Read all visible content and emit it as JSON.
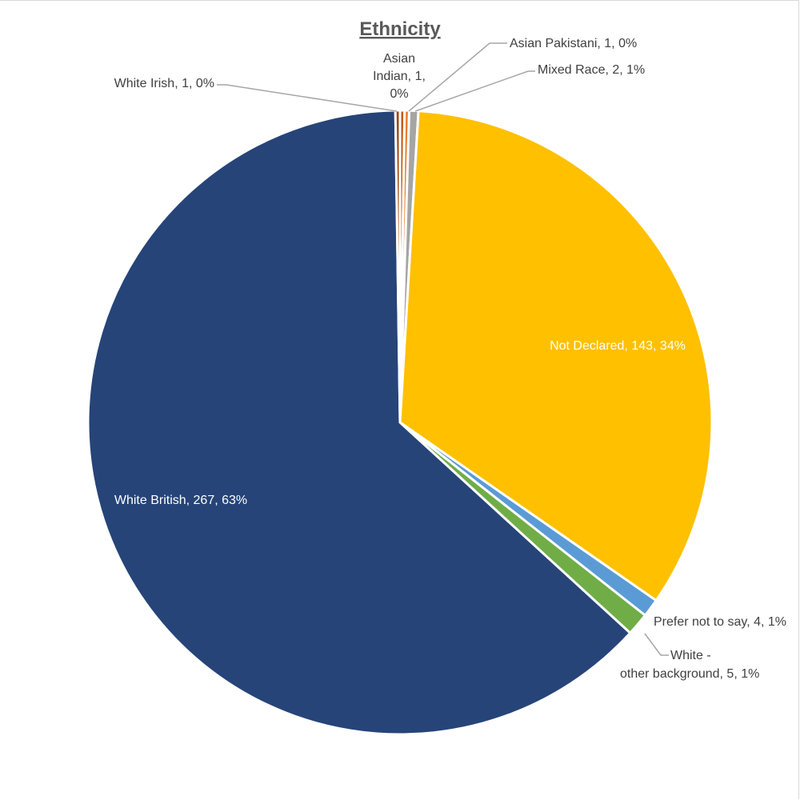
{
  "chart_data": {
    "type": "pie",
    "title": "Ethnicity",
    "slices": [
      {
        "name": "Asian Indian",
        "value": 1,
        "percent": "0%",
        "color": "#c55a11",
        "label_lines": [
          "Asian",
          "Indian, 1,",
          "0%"
        ]
      },
      {
        "name": "Asian Pakistani",
        "value": 1,
        "percent": "0%",
        "color": "#ed7d31",
        "label_lines": [
          "Asian Pakistani, 1, 0%"
        ]
      },
      {
        "name": "Mixed Race",
        "value": 2,
        "percent": "1%",
        "color": "#a5a5a5",
        "label_lines": [
          "Mixed Race, 2, 1%"
        ]
      },
      {
        "name": "Not Declared",
        "value": 143,
        "percent": "34%",
        "color": "#ffc000",
        "label_lines": [
          "Not Declared, 143, 34%"
        ]
      },
      {
        "name": "Prefer not to say",
        "value": 4,
        "percent": "1%",
        "color": "#5b9bd5",
        "label_lines": [
          "Prefer not to say, 4, 1%"
        ]
      },
      {
        "name": "White - other background",
        "value": 5,
        "percent": "1%",
        "color": "#70ad47",
        "label_lines": [
          "White -",
          "other background, 5, 1%"
        ]
      },
      {
        "name": "White British",
        "value": 267,
        "percent": "63%",
        "color": "#264478",
        "label_lines": [
          "White British, 267, 63%"
        ]
      },
      {
        "name": "White Irish",
        "value": 1,
        "percent": "0%",
        "color": "#9e480e",
        "label_lines": [
          "White Irish, 1, 0%"
        ]
      }
    ]
  }
}
